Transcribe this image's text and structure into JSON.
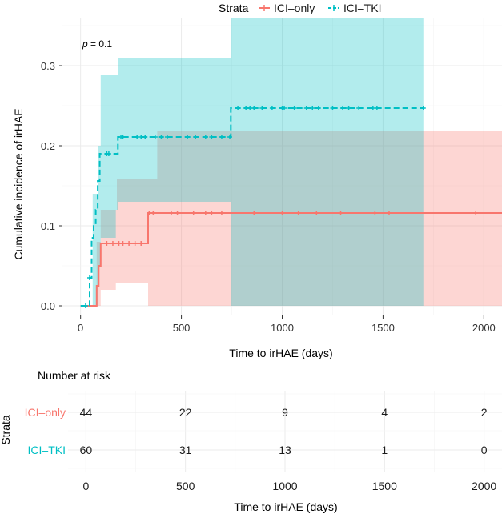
{
  "chart_data": {
    "type": "line",
    "subtype": "cumulative-incidence-step",
    "title": "",
    "xlabel": "Time to irHAE (days)",
    "ylabel": "Cumulative incidence of irHAE",
    "xlim": [
      -90,
      2090
    ],
    "ylim": [
      -0.012,
      0.36
    ],
    "x_ticks": [
      0,
      500,
      1000,
      1500,
      2000
    ],
    "y_ticks": [
      0.0,
      0.1,
      0.2,
      0.3
    ],
    "y_tick_labels": [
      "0.0",
      "0.1",
      "0.2",
      "0.3"
    ],
    "grid": true,
    "pvalue_text": "p = 0.1",
    "pvalue_prefix": "p",
    "pvalue_suffix": " = 0.1",
    "legend": {
      "title": "Strata",
      "position": "top",
      "entries": [
        "ICI–only",
        "ICI–TKI"
      ]
    },
    "series": [
      {
        "name": "ICI–only",
        "color": "#F8766D",
        "fill": "#F8766D",
        "linestyle": "solid",
        "steps": [
          [
            0,
            0.0
          ],
          [
            55,
            0.0
          ],
          [
            80,
            0.025
          ],
          [
            90,
            0.05
          ],
          [
            100,
            0.078
          ],
          [
            335,
            0.116
          ],
          [
            2100,
            0.116
          ]
        ],
        "ci_lower": [
          [
            0,
            0.0
          ],
          [
            80,
            0.0
          ],
          [
            100,
            0.02
          ],
          [
            175,
            0.028
          ],
          [
            335,
            0.0
          ],
          [
            2100,
            0.0
          ]
        ],
        "ci_upper": [
          [
            0,
            0.0
          ],
          [
            80,
            0.08
          ],
          [
            100,
            0.12
          ],
          [
            180,
            0.158
          ],
          [
            335,
            0.158
          ],
          [
            380,
            0.218
          ],
          [
            2100,
            0.218
          ]
        ],
        "censor_times": [
          130,
          160,
          190,
          210,
          240,
          270,
          300,
          340,
          360,
          450,
          480,
          560,
          620,
          650,
          700,
          860,
          1000,
          1080,
          1170,
          1290,
          1460,
          1530,
          1960,
          2100
        ]
      },
      {
        "name": "ICI–TKI",
        "color": "#00BFC4",
        "fill": "#00BFC4",
        "linestyle": "dashed",
        "steps": [
          [
            0,
            0.0
          ],
          [
            35,
            0.0
          ],
          [
            45,
            0.035
          ],
          [
            55,
            0.085
          ],
          [
            65,
            0.102
          ],
          [
            75,
            0.12
          ],
          [
            85,
            0.156
          ],
          [
            95,
            0.19
          ],
          [
            150,
            0.19
          ],
          [
            185,
            0.211
          ],
          [
            730,
            0.211
          ],
          [
            745,
            0.247
          ],
          [
            1700,
            0.247
          ]
        ],
        "ci_lower": [
          [
            0,
            0.0
          ],
          [
            60,
            0.0
          ],
          [
            85,
            0.05
          ],
          [
            100,
            0.085
          ],
          [
            175,
            0.12
          ],
          [
            185,
            0.13
          ],
          [
            730,
            0.13
          ],
          [
            745,
            0.0
          ],
          [
            1700,
            0.0
          ]
        ],
        "ci_upper": [
          [
            0,
            0.0
          ],
          [
            60,
            0.14
          ],
          [
            85,
            0.2
          ],
          [
            100,
            0.288
          ],
          [
            185,
            0.31
          ],
          [
            730,
            0.31
          ],
          [
            745,
            0.36
          ],
          [
            1700,
            0.36
          ]
        ],
        "censor_times": [
          25,
          45,
          130,
          140,
          200,
          210,
          280,
          300,
          320,
          370,
          400,
          430,
          530,
          570,
          620,
          650,
          700,
          740,
          780,
          820,
          840,
          860,
          900,
          950,
          1000,
          1010,
          1060,
          1120,
          1150,
          1180,
          1250,
          1300,
          1330,
          1380,
          1450,
          1470,
          1700
        ]
      }
    ]
  },
  "risk_table": {
    "title": "Number at risk",
    "strata_label": "Strata",
    "xlabel": "Time to irHAE (days)",
    "x_ticks": [
      0,
      500,
      1000,
      1500,
      2000
    ],
    "rows": [
      {
        "name": "ICI–only",
        "color": "#F8766D",
        "values": [
          44,
          22,
          9,
          4,
          2
        ]
      },
      {
        "name": "ICI–TKI",
        "color": "#00BFC4",
        "values": [
          60,
          31,
          13,
          1,
          0
        ]
      }
    ]
  }
}
